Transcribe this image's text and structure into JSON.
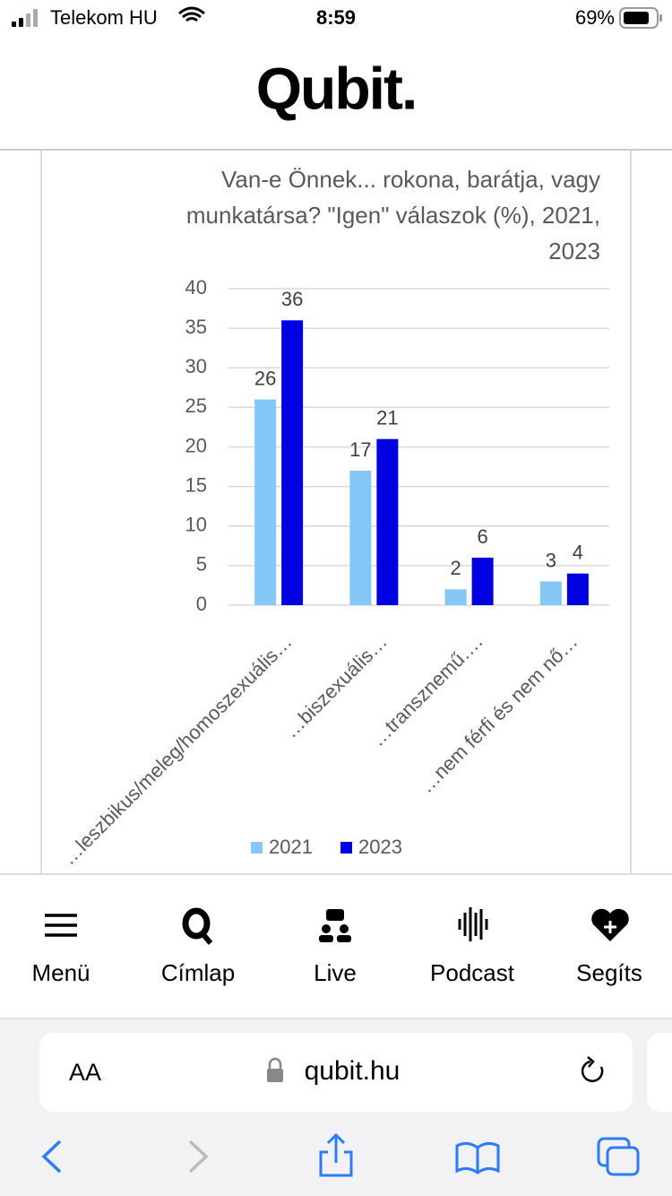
{
  "status_bar": {
    "carrier": "Telekom HU",
    "time": "8:59",
    "battery": "69%"
  },
  "header": {
    "logo": "Qubit."
  },
  "chart_data": {
    "type": "bar",
    "title": "Van-e Önnek... rokona, barátja, vagy munkatársa? \"Igen\" válaszok (%), 2021, 2023",
    "categories": [
      "…leszbikus/meleg/homoszexuális…",
      "…biszexuális…",
      "…transznemű….",
      "…nem férfi és nem nő…"
    ],
    "series": [
      {
        "name": "2021",
        "color": "#85c8f7",
        "values": [
          26,
          17,
          2,
          3
        ]
      },
      {
        "name": "2023",
        "color": "#0000e0",
        "values": [
          36,
          21,
          6,
          4
        ]
      }
    ],
    "ylim": [
      0,
      40
    ],
    "yticks": [
      0,
      5,
      10,
      15,
      20,
      25,
      30,
      35,
      40
    ],
    "grid": true,
    "legend": "bottom"
  },
  "nav": {
    "items": [
      "Menü",
      "Címlap",
      "Live",
      "Podcast",
      "Segíts"
    ]
  },
  "browser": {
    "text_size": "AA",
    "url": "qubit.hu"
  }
}
